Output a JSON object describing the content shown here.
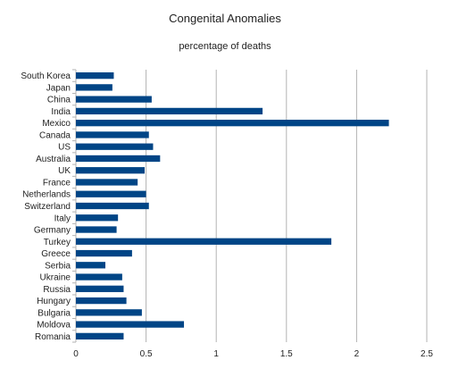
{
  "chart_data": {
    "type": "bar",
    "orientation": "horizontal",
    "title": "Congenital Anomalies",
    "subtitle": "percentage of deaths",
    "categories": [
      "South Korea",
      "Japan",
      "China",
      "India",
      "Mexico",
      "Canada",
      "US",
      "Australia",
      "UK",
      "France",
      "Netherlands",
      "Switzerland",
      "Italy",
      "Germany",
      "Turkey",
      "Greece",
      "Serbia",
      "Ukraine",
      "Russia",
      "Hungary",
      "Bulgaria",
      "Moldova",
      "Romania"
    ],
    "values": [
      0.27,
      0.26,
      0.54,
      1.33,
      2.23,
      0.52,
      0.55,
      0.6,
      0.49,
      0.44,
      0.5,
      0.52,
      0.3,
      0.29,
      1.82,
      0.4,
      0.21,
      0.33,
      0.34,
      0.36,
      0.47,
      0.77,
      0.34
    ],
    "xlim": [
      0,
      2.5
    ],
    "x_ticks": [
      "0",
      "0.5",
      "1",
      "1.5",
      "2",
      "2.5"
    ],
    "grid": true,
    "bar_color": "#004586"
  }
}
